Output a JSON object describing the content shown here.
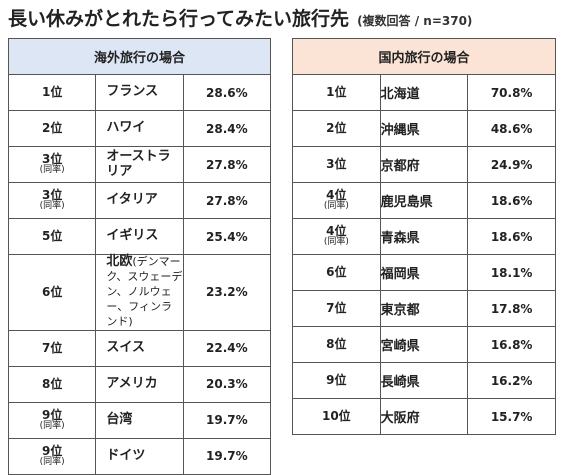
{
  "header": {
    "title": "長い休みがとれたら行ってみたい旅行先",
    "subtitle": "(複数回答 / n=370)"
  },
  "chart_data": [
    {
      "type": "table",
      "caption": "海外旅行の場合",
      "rows": [
        {
          "rank": "1位",
          "same": "",
          "name": "フランス",
          "note": "",
          "value": "28.6%"
        },
        {
          "rank": "2位",
          "same": "",
          "name": "ハワイ",
          "note": "",
          "value": "28.4%"
        },
        {
          "rank": "3位",
          "same": "(同率)",
          "name": "オーストラリア",
          "note": "",
          "value": "27.8%"
        },
        {
          "rank": "3位",
          "same": "(同率)",
          "name": "イタリア",
          "note": "",
          "value": "27.8%"
        },
        {
          "rank": "5位",
          "same": "",
          "name": "イギリス",
          "note": "",
          "value": "25.4%"
        },
        {
          "rank": "6位",
          "same": "",
          "name": "北欧",
          "note": "(デンマーク、スウェーデン、ノルウェー、フィンランド)",
          "value": "23.2%"
        },
        {
          "rank": "7位",
          "same": "",
          "name": "スイス",
          "note": "",
          "value": "22.4%"
        },
        {
          "rank": "8位",
          "same": "",
          "name": "アメリカ",
          "note": "",
          "value": "20.3%"
        },
        {
          "rank": "9位",
          "same": "(同率)",
          "name": "台湾",
          "note": "",
          "value": "19.7%"
        },
        {
          "rank": "9位",
          "same": "(同率)",
          "name": "ドイツ",
          "note": "",
          "value": "19.7%"
        }
      ]
    },
    {
      "type": "table",
      "caption": "国内旅行の場合",
      "rows": [
        {
          "rank": "1位",
          "same": "",
          "name": "北海道",
          "note": "",
          "value": "70.8%"
        },
        {
          "rank": "2位",
          "same": "",
          "name": "沖縄県",
          "note": "",
          "value": "48.6%"
        },
        {
          "rank": "3位",
          "same": "",
          "name": "京都府",
          "note": "",
          "value": "24.9%"
        },
        {
          "rank": "4位",
          "same": "(同率)",
          "name": "鹿児島県",
          "note": "",
          "value": "18.6%"
        },
        {
          "rank": "4位",
          "same": "(同率)",
          "name": "青森県",
          "note": "",
          "value": "18.6%"
        },
        {
          "rank": "6位",
          "same": "",
          "name": "福岡県",
          "note": "",
          "value": "18.1%"
        },
        {
          "rank": "7位",
          "same": "",
          "name": "東京都",
          "note": "",
          "value": "17.8%"
        },
        {
          "rank": "8位",
          "same": "",
          "name": "宮崎県",
          "note": "",
          "value": "16.8%"
        },
        {
          "rank": "9位",
          "same": "",
          "name": "長崎県",
          "note": "",
          "value": "16.2%"
        },
        {
          "rank": "10位",
          "same": "",
          "name": "大阪府",
          "note": "",
          "value": "15.7%"
        }
      ]
    }
  ]
}
